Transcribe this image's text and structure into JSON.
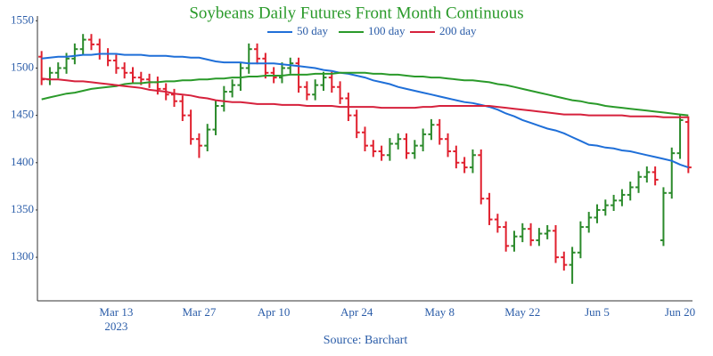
{
  "chart_data": {
    "type": "ohlc",
    "title": "Soybeans Daily Futures Front Month Continuous",
    "source": "Source: Barchart",
    "year_label": "2023",
    "categories": [
      null,
      null,
      null,
      null,
      null,
      null,
      null,
      null,
      null,
      "Mar 13",
      null,
      null,
      null,
      null,
      null,
      null,
      null,
      null,
      null,
      "Mar 27",
      null,
      null,
      null,
      null,
      null,
      null,
      null,
      null,
      "Apr 10",
      null,
      null,
      null,
      null,
      null,
      null,
      null,
      null,
      null,
      "Apr 24",
      null,
      null,
      null,
      null,
      null,
      null,
      null,
      null,
      null,
      "May 8",
      null,
      null,
      null,
      null,
      null,
      null,
      null,
      null,
      null,
      "May 22",
      null,
      null,
      null,
      null,
      null,
      null,
      null,
      null,
      "Jun 5",
      null,
      null,
      null,
      null,
      null,
      null,
      null,
      null,
      null,
      "Jun 20",
      null
    ],
    "open": [
      1512,
      1488,
      1495,
      1500,
      1510,
      1520,
      1530,
      1525,
      1515,
      1508,
      1500,
      1495,
      1490,
      1488,
      1485,
      1478,
      1472,
      1465,
      1450,
      1425,
      1418,
      1435,
      1460,
      1475,
      1482,
      1500,
      1520,
      1510,
      1495,
      1490,
      1500,
      1505,
      1480,
      1472,
      1482,
      1490,
      1480,
      1468,
      1450,
      1432,
      1418,
      1412,
      1408,
      1420,
      1425,
      1410,
      1418,
      1430,
      1440,
      1425,
      1412,
      1400,
      1395,
      1408,
      1362,
      1340,
      1332,
      1312,
      1322,
      1330,
      1318,
      1325,
      1328,
      1300,
      1292,
      1305,
      1332,
      1342,
      1350,
      1355,
      1360,
      1366,
      1374,
      1385,
      1390,
      1318,
      1368,
      1410,
      1443
    ],
    "high": [
      1518,
      1501,
      1506,
      1516,
      1526,
      1536,
      1536,
      1531,
      1521,
      1514,
      1506,
      1501,
      1496,
      1494,
      1491,
      1484,
      1478,
      1471,
      1456,
      1431,
      1441,
      1466,
      1481,
      1488,
      1506,
      1526,
      1526,
      1516,
      1501,
      1506,
      1511,
      1511,
      1486,
      1488,
      1496,
      1496,
      1486,
      1474,
      1456,
      1438,
      1424,
      1418,
      1426,
      1431,
      1431,
      1424,
      1436,
      1446,
      1446,
      1431,
      1418,
      1406,
      1414,
      1414,
      1368,
      1346,
      1338,
      1328,
      1336,
      1336,
      1331,
      1334,
      1334,
      1306,
      1311,
      1338,
      1348,
      1356,
      1361,
      1366,
      1372,
      1380,
      1391,
      1396,
      1396,
      1374,
      1416,
      1451,
      1449
    ],
    "low": [
      1482,
      1482,
      1489,
      1494,
      1504,
      1514,
      1519,
      1509,
      1502,
      1494,
      1489,
      1484,
      1482,
      1479,
      1472,
      1466,
      1459,
      1444,
      1419,
      1405,
      1412,
      1429,
      1454,
      1469,
      1476,
      1494,
      1504,
      1489,
      1484,
      1484,
      1494,
      1474,
      1466,
      1466,
      1476,
      1474,
      1462,
      1444,
      1426,
      1412,
      1406,
      1402,
      1402,
      1414,
      1404,
      1404,
      1412,
      1424,
      1419,
      1406,
      1394,
      1389,
      1389,
      1356,
      1334,
      1326,
      1306,
      1306,
      1316,
      1312,
      1312,
      1319,
      1294,
      1286,
      1272,
      1299,
      1326,
      1336,
      1344,
      1349,
      1354,
      1360,
      1368,
      1379,
      1376,
      1312,
      1362,
      1404,
      1389
    ],
    "close": [
      1488,
      1495,
      1500,
      1510,
      1520,
      1530,
      1525,
      1515,
      1508,
      1500,
      1495,
      1490,
      1488,
      1485,
      1478,
      1472,
      1465,
      1450,
      1425,
      1418,
      1435,
      1460,
      1475,
      1482,
      1500,
      1520,
      1510,
      1495,
      1490,
      1500,
      1505,
      1480,
      1472,
      1482,
      1490,
      1480,
      1468,
      1450,
      1432,
      1418,
      1412,
      1408,
      1420,
      1425,
      1410,
      1418,
      1430,
      1440,
      1425,
      1412,
      1400,
      1395,
      1408,
      1362,
      1340,
      1332,
      1312,
      1322,
      1330,
      1318,
      1325,
      1328,
      1300,
      1292,
      1305,
      1332,
      1342,
      1350,
      1355,
      1360,
      1366,
      1374,
      1385,
      1390,
      1382,
      1368,
      1410,
      1445,
      1395
    ],
    "increasing_color": "#2b8a2b",
    "decreasing_color": "#e0202e",
    "series": [
      {
        "name": "50 day",
        "color": "#1f6fd8",
        "values": [
          1510,
          1511,
          1512,
          1512,
          1513,
          1514,
          1514,
          1515,
          1515,
          1515,
          1514,
          1514,
          1514,
          1513,
          1513,
          1513,
          1512,
          1512,
          1511,
          1511,
          1509,
          1507,
          1506,
          1506,
          1506,
          1505,
          1505,
          1505,
          1505,
          1504,
          1503,
          1502,
          1501,
          1500,
          1498,
          1497,
          1495,
          1494,
          1492,
          1490,
          1487,
          1485,
          1483,
          1480,
          1478,
          1476,
          1474,
          1472,
          1470,
          1468,
          1466,
          1464,
          1463,
          1461,
          1459,
          1456,
          1452,
          1449,
          1445,
          1442,
          1439,
          1436,
          1434,
          1431,
          1427,
          1423,
          1419,
          1418,
          1416,
          1415,
          1413,
          1412,
          1410,
          1408,
          1406,
          1404,
          1402,
          1398,
          1395
        ]
      },
      {
        "name": "100 day",
        "color": "#2a9a2a",
        "values": [
          1467,
          1469,
          1471,
          1473,
          1474,
          1476,
          1478,
          1479,
          1480,
          1481,
          1483,
          1484,
          1484,
          1485,
          1485,
          1486,
          1486,
          1487,
          1487,
          1488,
          1488,
          1489,
          1489,
          1490,
          1490,
          1491,
          1491,
          1492,
          1492,
          1492,
          1493,
          1493,
          1493,
          1494,
          1494,
          1494,
          1495,
          1495,
          1495,
          1495,
          1494,
          1494,
          1493,
          1493,
          1492,
          1491,
          1491,
          1490,
          1490,
          1489,
          1488,
          1487,
          1487,
          1486,
          1485,
          1483,
          1482,
          1480,
          1478,
          1476,
          1474,
          1472,
          1470,
          1468,
          1466,
          1465,
          1463,
          1462,
          1460,
          1459,
          1458,
          1457,
          1456,
          1455,
          1454,
          1453,
          1452,
          1451,
          1450
        ]
      },
      {
        "name": "200 day",
        "color": "#d6213c",
        "values": [
          1489,
          1488,
          1488,
          1487,
          1486,
          1486,
          1485,
          1484,
          1483,
          1482,
          1481,
          1480,
          1479,
          1477,
          1476,
          1475,
          1473,
          1472,
          1471,
          1469,
          1468,
          1466,
          1465,
          1464,
          1464,
          1463,
          1462,
          1462,
          1462,
          1461,
          1461,
          1461,
          1460,
          1460,
          1460,
          1460,
          1459,
          1459,
          1459,
          1459,
          1459,
          1458,
          1458,
          1458,
          1458,
          1458,
          1459,
          1459,
          1460,
          1460,
          1460,
          1460,
          1460,
          1460,
          1460,
          1459,
          1458,
          1457,
          1456,
          1455,
          1454,
          1453,
          1452,
          1451,
          1451,
          1451,
          1450,
          1450,
          1450,
          1450,
          1450,
          1449,
          1449,
          1449,
          1449,
          1448,
          1448,
          1448,
          1448
        ]
      }
    ],
    "ylim": [
      1254,
      1555
    ],
    "yticks": [
      1300,
      1350,
      1400,
      1450,
      1500,
      1550
    ],
    "grid": false,
    "legend": "top"
  }
}
